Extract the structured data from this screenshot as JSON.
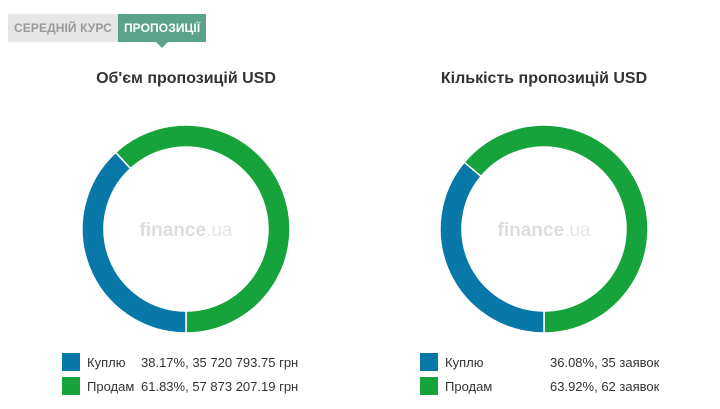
{
  "tabs": [
    {
      "label": "СЕРЕДНІЙ КУРС",
      "active": false
    },
    {
      "label": "ПРОПОЗИЦІЇ",
      "active": true
    }
  ],
  "colors": {
    "buy": "#0778a8",
    "sell": "#17a33b",
    "tab_active": "#5aa38a"
  },
  "watermark": {
    "brand": "finance",
    "suffix": ".ua"
  },
  "chart_data": [
    {
      "type": "pie",
      "title": "Об'єм пропозицій USD",
      "categories": [
        "Куплю",
        "Продам"
      ],
      "values": [
        38.17,
        61.83
      ],
      "series": [
        {
          "name": "Куплю",
          "percent_text": "38.17%",
          "amount_text": "35 720 793.75 грн"
        },
        {
          "name": "Продам",
          "percent_text": "61.83%",
          "amount_text": "57 873 207.19 грн"
        }
      ]
    },
    {
      "type": "pie",
      "title": "Кількість пропозицій USD",
      "categories": [
        "Куплю",
        "Продам"
      ],
      "values": [
        36.08,
        63.92
      ],
      "series": [
        {
          "name": "Куплю",
          "percent_text": "36.08%",
          "amount_text": "35 заявок"
        },
        {
          "name": "Продам",
          "percent_text": "63.92%",
          "amount_text": "62 заявок"
        }
      ]
    }
  ]
}
